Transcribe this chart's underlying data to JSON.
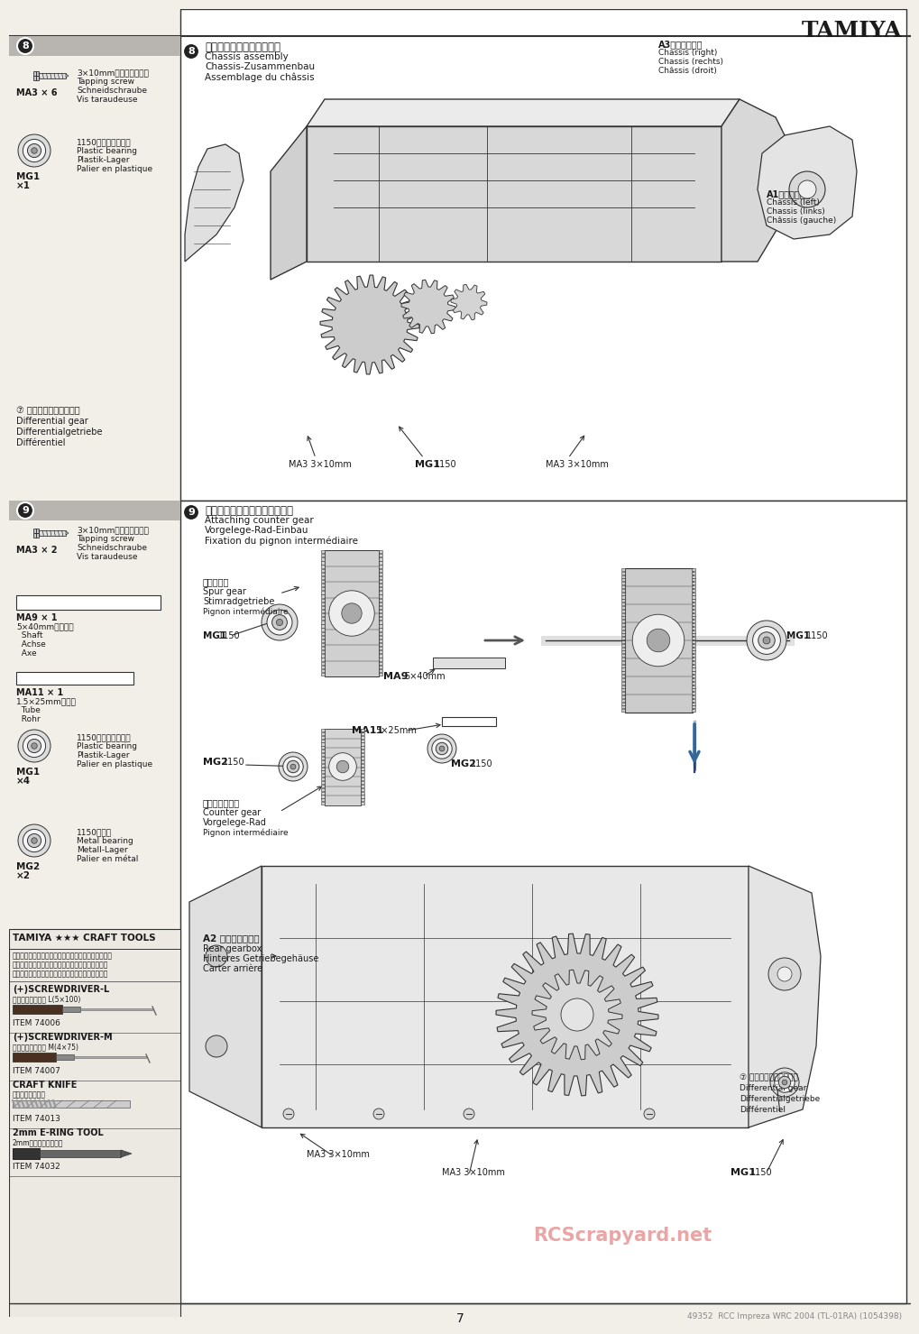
{
  "bg_color": "#f2efe9",
  "title": "TAMIYA",
  "page_number": "7",
  "footer_right": "49352  RCC Impreza WRC 2004 (TL-01RA) (1054398)",
  "step8_num": "8",
  "step9_num": "9",
  "step8_jp": "《シャーシーの組み立て》",
  "step8_en": "Chassis assembly",
  "step8_de": "Chassis-Zusammenbau",
  "step8_fr": "Assemblage du châssis",
  "step9_jp": "《カウンターギヤのとりつけ》",
  "step9_en": "Attaching counter gear",
  "step9_de": "Vorgelege-Rad-Einbau",
  "step9_fr": "Fixation du pignon intermédiaire",
  "ma3_jp": "3×10mmタッピングビス",
  "ma3_en": "Tapping screw",
  "ma3_de": "Schneidschraube",
  "ma3_fr": "Vis taraudeuse",
  "mg1_jp": "1150プラベアリング",
  "mg1_en": "Plastic bearing",
  "mg1_de": "Plastik-Lager",
  "mg1_fr": "Palier en plastique",
  "mg2_jp": "1150メタル",
  "mg2_en": "Metal bearing",
  "mg2_de": "Metall-Lager",
  "mg2_fr": "Palier en métal",
  "ma9_jp": "5×40mmシャフト",
  "ma9_en": "Shaft",
  "ma9_de": "Achse",
  "ma9_fr": "Axe",
  "ma11_jp": "1.5×25mmパイプ",
  "ma11_en": "Tube",
  "ma11_de": "Rohr",
  "note8_jp": "⑦ てくみたてたデフギヤ",
  "note8_en": "Differential gear",
  "note8_de": "Differentialgetriebe",
  "note8_fr": "Différentiel",
  "spur_jp": "スパーギヤ",
  "spur_en": "Spur gear",
  "spur_de": "Stimradgetriebe",
  "spur_fr": "Pignon intermédiaire",
  "counter_jp": "カウンターギヤ",
  "counter_en": "Counter gear",
  "counter_de": "Vorgelege-Rad",
  "counter_fr": "Pignon intermédiaire",
  "a2_jp": "A2 リヤギヤケース",
  "a2_en": "Rear gearbox",
  "a2_de": "Hinteres Getriebegehäuse",
  "a2_fr": "Carter arrière",
  "a3_label": "A3シャーシー右",
  "a3_en": "Chassis (right)",
  "a3_de": "Chassis (rechts)",
  "a3_fr": "Châssis (droit)",
  "a1_label": "A1シャーシー左",
  "a1_en": "Chassis (left)",
  "a1_de": "Chassis (links)",
  "a1_fr": "Châssis (gauche)",
  "tools_title": "TAMIYA ★★★ CRAFT TOOLS",
  "tools_desc": "良い工具選びは彿のくりかたのための第一歩。本格派\nをめざすモデラーにふさわしいタミヤクラフトツー\nル。耐久性も高く、使いやすい高品質な工具です。",
  "sd_l_name": "(+)SCREWDRIVER-L",
  "sd_l_sub": "プラスドライバー L(5×100)",
  "sd_l_item": "ITEM 74006",
  "sd_m_name": "(+)SCREWDRIVER-M",
  "sd_m_sub": "プラスドライバー M(4×75)",
  "sd_m_item": "ITEM 74007",
  "ck_name": "CRAFT KNIFE",
  "ck_sub": "クラフトカッター",
  "ck_item": "ITEM 74013",
  "er_name": "2mm E-RING TOOL",
  "er_sub": "2mmエリングセッター",
  "er_item": "ITEM 74032",
  "header_bar_color": "#b8b5b0",
  "white": "#ffffff",
  "dark": "#1a1a1a",
  "mid_gray": "#888888",
  "light_gray": "#dddddd",
  "line_color": "#333333"
}
